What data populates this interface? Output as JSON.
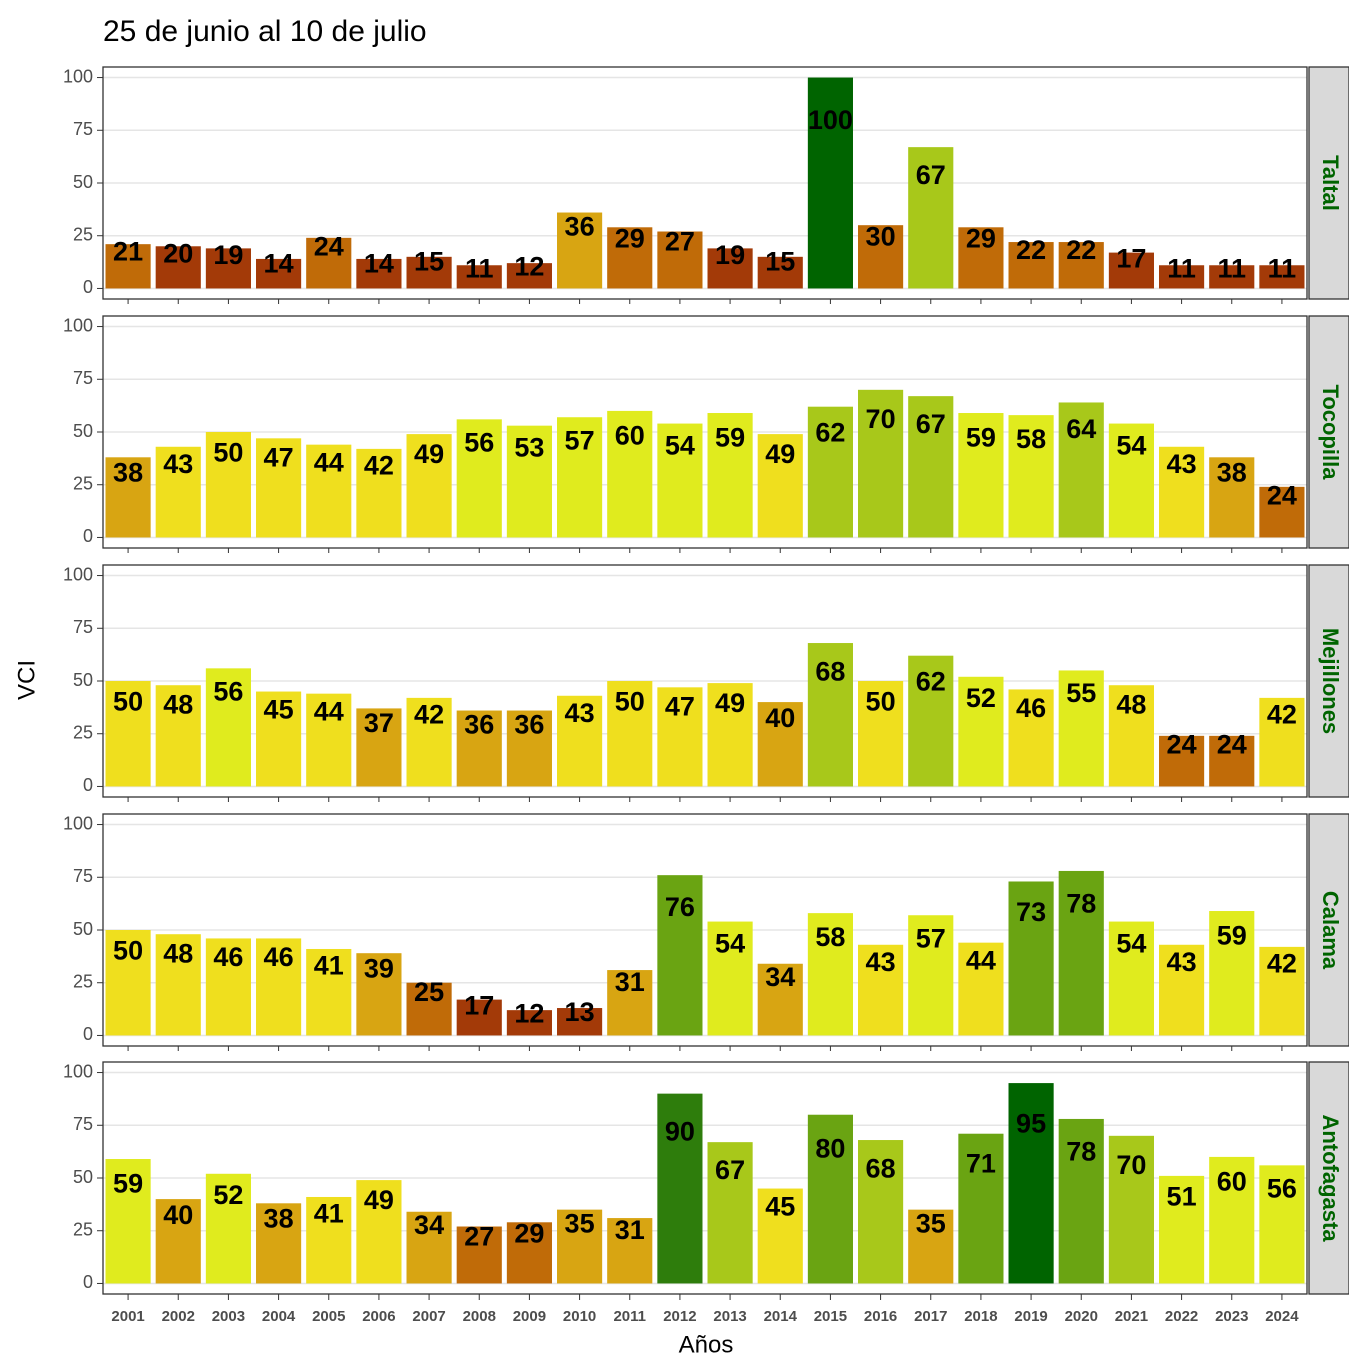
{
  "chart_data": {
    "type": "bar",
    "title": "25 de junio al 10 de julio",
    "x_label": "Años",
    "y_label": "VCI",
    "categories": [
      "2001",
      "2002",
      "2003",
      "2004",
      "2005",
      "2006",
      "2007",
      "2008",
      "2009",
      "2010",
      "2011",
      "2012",
      "2013",
      "2014",
      "2015",
      "2016",
      "2017",
      "2018",
      "2019",
      "2020",
      "2021",
      "2022",
      "2023",
      "2024"
    ],
    "ylim": [
      -5,
      105
    ],
    "yticks": [
      0,
      25,
      50,
      75,
      100
    ],
    "grid": true,
    "strip_color": "#006400",
    "panels": [
      {
        "name": "Taltal",
        "values": [
          21,
          20,
          19,
          14,
          24,
          14,
          15,
          11,
          12,
          36,
          29,
          27,
          19,
          15,
          100,
          30,
          67,
          29,
          22,
          22,
          17,
          11,
          11,
          11
        ],
        "colors": [
          "#c06b08",
          "#a33a08",
          "#a33a08",
          "#a33a08",
          "#c06b08",
          "#a33a08",
          "#a33a08",
          "#a33a08",
          "#a33a08",
          "#d8a512",
          "#c06b08",
          "#c06b08",
          "#a33a08",
          "#a33a08",
          "#006400",
          "#c06b08",
          "#a8c81a",
          "#c06b08",
          "#c06b08",
          "#c06b08",
          "#a33a08",
          "#a33a08",
          "#a33a08",
          "#a33a08"
        ]
      },
      {
        "name": "Tocopilla",
        "values": [
          38,
          43,
          50,
          47,
          44,
          42,
          49,
          56,
          53,
          57,
          60,
          54,
          59,
          49,
          62,
          70,
          67,
          59,
          58,
          64,
          54,
          43,
          38,
          24
        ],
        "colors": [
          "#d8a512",
          "#efdf1e",
          "#efdf1e",
          "#efdf1e",
          "#efdf1e",
          "#efdf1e",
          "#efdf1e",
          "#e0eb1e",
          "#e0eb1e",
          "#e0eb1e",
          "#e0eb1e",
          "#e0eb1e",
          "#e0eb1e",
          "#efdf1e",
          "#a8c81a",
          "#a8c81a",
          "#a8c81a",
          "#e0eb1e",
          "#e0eb1e",
          "#a8c81a",
          "#e0eb1e",
          "#efdf1e",
          "#d8a512",
          "#c06b08"
        ]
      },
      {
        "name": "Mejillones",
        "values": [
          50,
          48,
          56,
          45,
          44,
          37,
          42,
          36,
          36,
          43,
          50,
          47,
          49,
          40,
          68,
          50,
          62,
          52,
          46,
          55,
          48,
          24,
          24,
          42
        ],
        "colors": [
          "#efdf1e",
          "#efdf1e",
          "#e0eb1e",
          "#efdf1e",
          "#efdf1e",
          "#d8a512",
          "#efdf1e",
          "#d8a512",
          "#d8a512",
          "#efdf1e",
          "#efdf1e",
          "#efdf1e",
          "#efdf1e",
          "#d8a512",
          "#a8c81a",
          "#efdf1e",
          "#a8c81a",
          "#e0eb1e",
          "#efdf1e",
          "#e0eb1e",
          "#efdf1e",
          "#c06b08",
          "#c06b08",
          "#efdf1e"
        ]
      },
      {
        "name": "Calama",
        "values": [
          50,
          48,
          46,
          46,
          41,
          39,
          25,
          17,
          12,
          13,
          31,
          76,
          54,
          34,
          58,
          43,
          57,
          44,
          73,
          78,
          54,
          43,
          59,
          42
        ],
        "colors": [
          "#efdf1e",
          "#efdf1e",
          "#efdf1e",
          "#efdf1e",
          "#efdf1e",
          "#d8a512",
          "#c06b08",
          "#a33a08",
          "#a33a08",
          "#a33a08",
          "#d8a512",
          "#6aa412",
          "#e0eb1e",
          "#d8a512",
          "#e0eb1e",
          "#efdf1e",
          "#e0eb1e",
          "#efdf1e",
          "#6aa412",
          "#6aa412",
          "#e0eb1e",
          "#efdf1e",
          "#e0eb1e",
          "#efdf1e"
        ]
      },
      {
        "name": "Antofagasta",
        "values": [
          59,
          40,
          52,
          38,
          41,
          49,
          34,
          27,
          29,
          35,
          31,
          90,
          67,
          45,
          80,
          68,
          35,
          71,
          95,
          78,
          70,
          51,
          60,
          56
        ],
        "colors": [
          "#e0eb1e",
          "#d8a512",
          "#e0eb1e",
          "#d8a512",
          "#efdf1e",
          "#efdf1e",
          "#d8a512",
          "#c06b08",
          "#c06b08",
          "#d8a512",
          "#d8a512",
          "#2e7d0c",
          "#a8c81a",
          "#efdf1e",
          "#6aa412",
          "#a8c81a",
          "#d8a512",
          "#6aa412",
          "#006400",
          "#6aa412",
          "#a8c81a",
          "#e0eb1e",
          "#e0eb1e",
          "#e0eb1e"
        ]
      }
    ]
  }
}
